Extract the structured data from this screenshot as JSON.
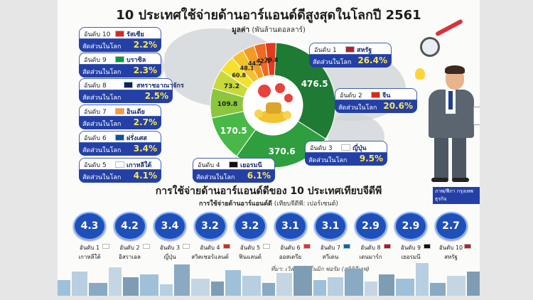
{
  "title": "10 ประเทศใช้จ่ายด้านอาร์แอนด์ดีสูงสุดในโลกปี 2561",
  "unit": {
    "label": "มูลค่า",
    "note": "(พันล้านดอลลาร์)"
  },
  "share_label": "สัดส่วนในโลก",
  "chart_data": [
    {
      "type": "pie",
      "title": "10 ประเทศใช้จ่ายด้านอาร์แอนด์ดีสูงสุดในโลกปี 2561",
      "value_unit": "มูลค่า (พันล้านดอลลาร์)",
      "slices": [
        {
          "rank": "อันดับ 1",
          "country": "สหรัฐ",
          "value": 476.5,
          "share": "26.4%",
          "color": "#1f7a34"
        },
        {
          "rank": "อันดับ 2",
          "country": "จีน",
          "value": 370.6,
          "share": "20.6%",
          "color": "#2e9e3f"
        },
        {
          "rank": "อันดับ 3",
          "country": "ญี่ปุ่น",
          "value": 170.5,
          "share": "9.5%",
          "color": "#49b848"
        },
        {
          "rank": "อันดับ 4",
          "country": "เยอรมนี",
          "value": 109.8,
          "share": "6.1%",
          "color": "#8cc63f"
        },
        {
          "rank": "อันดับ 5",
          "country": "เกาหลีใต้",
          "value": 73.2,
          "share": "4.1%",
          "color": "#c8d93a"
        },
        {
          "rank": "อันดับ 6",
          "country": "ฝรั่งเศส",
          "value": 60.8,
          "share": "3.4%",
          "color": "#f2e12f"
        },
        {
          "rank": "อันดับ 7",
          "country": "อินเดีย",
          "value": 48.1,
          "share": "2.7%",
          "color": "#f6c12a"
        },
        {
          "rank": "อันดับ 8",
          "country": "สหราชอาณาจักร",
          "value": 44.2,
          "share": "2.5%",
          "color": "#f39a25"
        },
        {
          "rank": "อันดับ 9",
          "country": "บราซิล",
          "value": 42.1,
          "share": "2.3%",
          "color": "#ee6a22"
        },
        {
          "rank": "อันดับ 10",
          "country": "รัสเซีย",
          "value": 39.8,
          "share": "2.2%",
          "color": "#e23b1e"
        }
      ]
    },
    {
      "type": "bar",
      "title": "การใช้จ่ายด้านอาร์แอนด์ดีของ 10 ประเทศเทียบจีดีพี",
      "subtitle_bold": "การใช้จ่ายด้านอาร์แอนด์ดี",
      "subtitle_note": "(เทียบจีดีพี: เปอร์เซนต์)",
      "categories": [
        {
          "rank": "อันดับ 1",
          "country": "เกาหลีใต้",
          "value": 4.3
        },
        {
          "rank": "อันดับ 2",
          "country": "อิสราเอล",
          "value": 4.2
        },
        {
          "rank": "อันดับ 3",
          "country": "ญี่ปุ่น",
          "value": 3.4
        },
        {
          "rank": "อันดับ 4",
          "country": "สวิตเซอร์แลนด์",
          "value": 3.2
        },
        {
          "rank": "อันดับ 5",
          "country": "ฟินแลนด์",
          "value": 3.2
        },
        {
          "rank": "อันดับ 6",
          "country": "ออสเตรีย",
          "value": 3.1
        },
        {
          "rank": "อันดับ 7",
          "country": "สวีเดน",
          "value": 3.1
        },
        {
          "rank": "อันดับ 8",
          "country": "เดนมาร์ก",
          "value": 2.9
        },
        {
          "rank": "อันดับ 9",
          "country": "เยอรมนี",
          "value": 2.9
        },
        {
          "rank": "อันดับ 10",
          "country": "สหรัฐ",
          "value": 2.7
        }
      ]
    }
  ],
  "source": "ที่มา: เวิลด์ อีโคโนมิก ฟอรัม (สถิติอีเอฟ)",
  "credit": "ภาพ/ฟีกา กรุงเทพธุรกิจ"
}
